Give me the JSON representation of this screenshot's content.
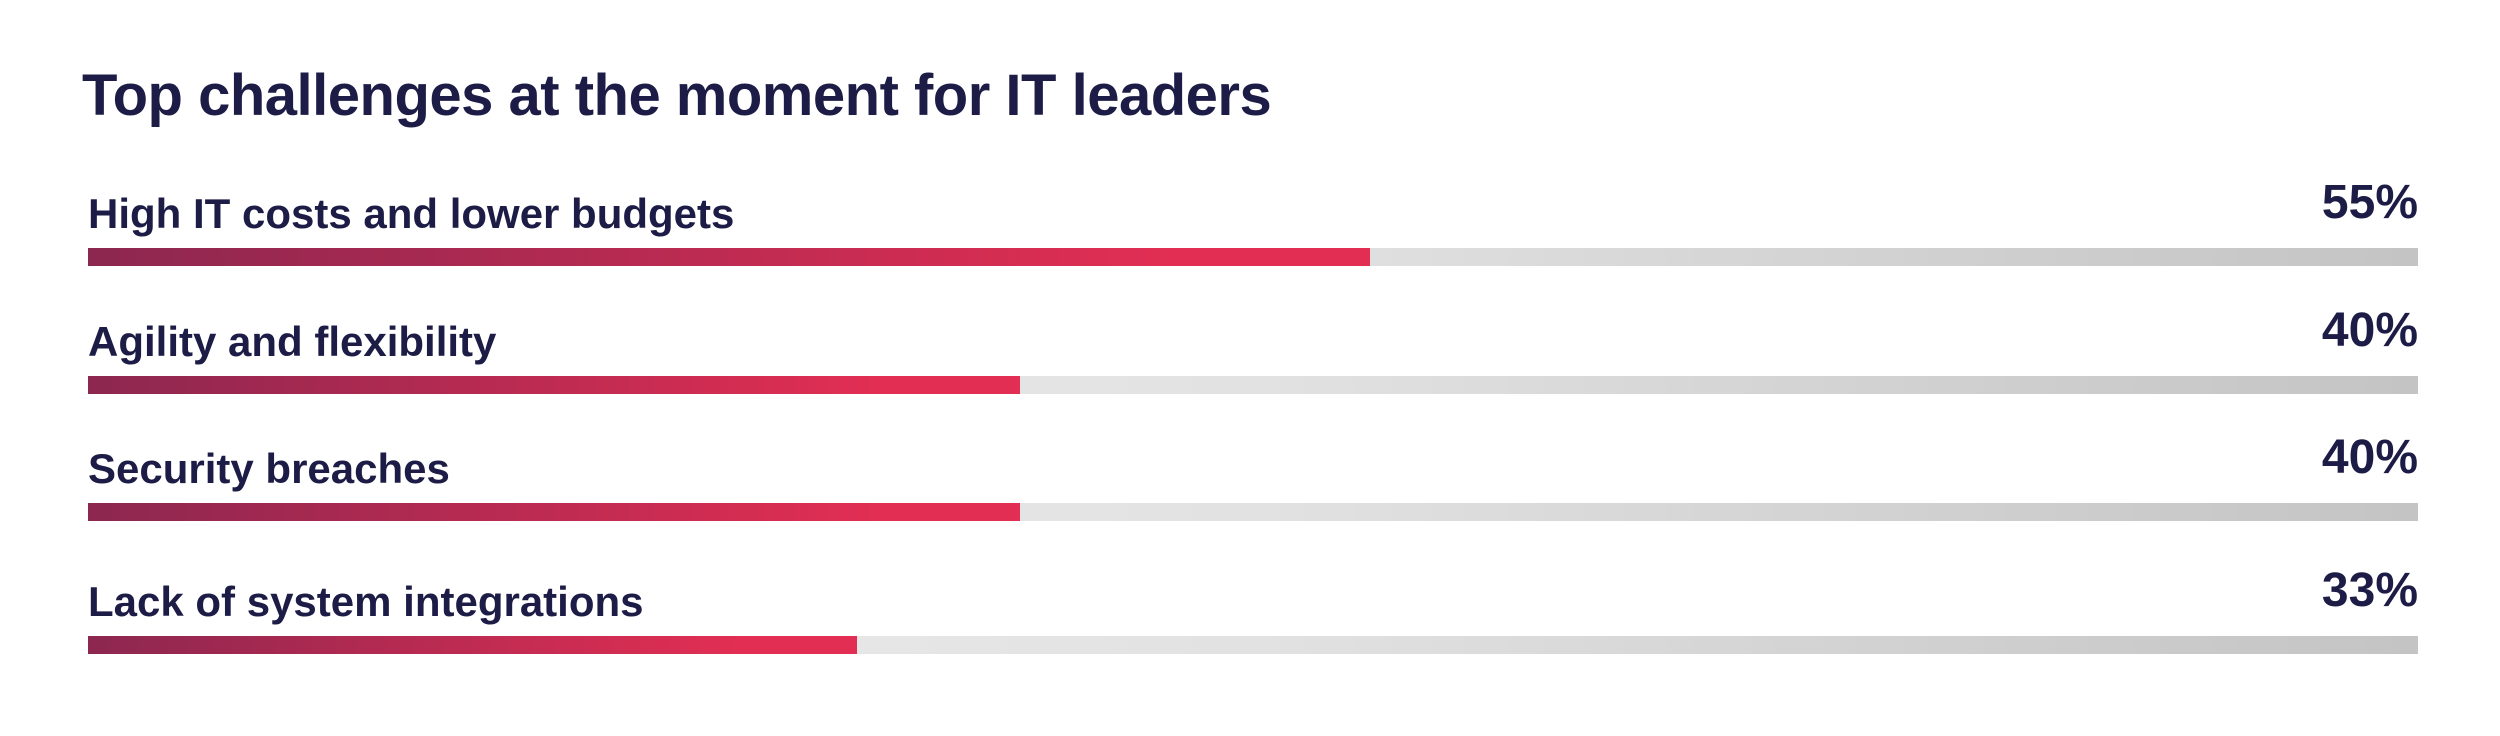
{
  "title": "Top challenges at the moment for IT leaders",
  "colors": {
    "text": "#1c1c46",
    "bar_start": "#8c2750",
    "bar_end": "#e22e53",
    "track": "#e2e2e2"
  },
  "chart_data": {
    "type": "bar",
    "orientation": "horizontal",
    "title": "Top challenges at the moment for IT leaders",
    "categories": [
      "High IT costs and lower budgets",
      "Agility and flexibility",
      "Security breaches",
      "Lack of system integrations"
    ],
    "values": [
      55,
      40,
      40,
      33
    ],
    "value_labels": [
      "55%",
      "40%",
      "40%",
      "33%"
    ],
    "unit": "%",
    "xlim": [
      0,
      100
    ],
    "grid": false,
    "legend": "none"
  }
}
